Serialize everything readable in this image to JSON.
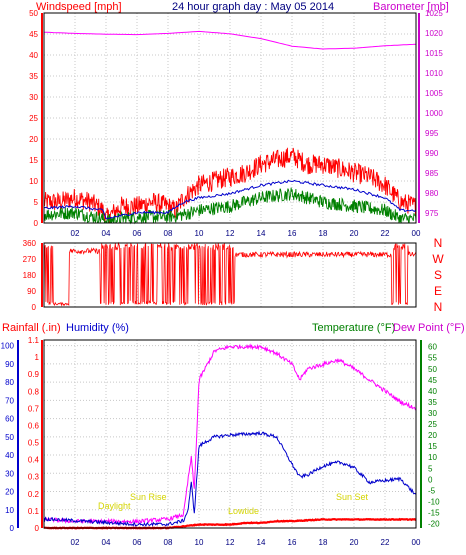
{
  "header": {
    "title": "24 hour graph day : May 05 2014",
    "left_label": "Windspeed [mph]",
    "right_label": "Barometer [mb]"
  },
  "bottom_header": {
    "rainfall_label": "Rainfall (.in)",
    "humidity_label": "Humidity (%)",
    "temperature_label": "Temperature (°F)",
    "dewpoint_label": "Dew Point (°F)"
  },
  "annotations": {
    "daylight": "Daylight",
    "sunrise": "Sun Rise",
    "lowtide": "Lowtide",
    "sunset": "Sun Set"
  },
  "colors": {
    "windspeed": "#ff0000",
    "avg_wind": "#0000cc",
    "gust_low": "#008000",
    "barometer": "#ff00ff",
    "direction": "#ff0000",
    "rainfall": "#ff0000",
    "humidity": "#0000cc",
    "temperature": "#ff00ff",
    "grid": "#c8c8c8",
    "annotation": "#ffff00"
  },
  "chart_data": [
    {
      "type": "line",
      "name": "wind-barometer",
      "xlabel": "",
      "x_ticks": [
        "02",
        "04",
        "06",
        "08",
        "10",
        "12",
        "14",
        "16",
        "18",
        "20",
        "22",
        "00"
      ],
      "y_left_ticks": [
        0,
        5,
        10,
        15,
        20,
        25,
        30,
        35,
        40,
        45,
        50
      ],
      "y_left_label": "Windspeed [mph]",
      "ylim_left": [
        0,
        50
      ],
      "y_right_ticks": [
        975,
        980,
        985,
        990,
        995,
        1000,
        1005,
        1010,
        1015,
        1020,
        1025
      ],
      "y_right_label": "Barometer [mb]",
      "ylim_right": [
        972.5,
        1025
      ],
      "xlim": [
        0,
        24
      ],
      "grid": true,
      "series": [
        {
          "name": "Windspeed",
          "x": [
            0,
            1,
            2,
            3,
            3.8,
            4,
            5,
            6,
            7,
            8,
            8.5,
            9,
            10,
            11,
            12,
            13,
            14,
            15,
            16,
            17,
            18,
            19,
            20,
            21,
            22,
            23,
            24
          ],
          "values": [
            5,
            5,
            6,
            5,
            3,
            1,
            4,
            4,
            5,
            4,
            3,
            6,
            9,
            10,
            11,
            12,
            14,
            15,
            16,
            14,
            14,
            13,
            12,
            11,
            9,
            5,
            4
          ]
        },
        {
          "name": "Avg",
          "x": [
            0,
            2,
            3.8,
            4,
            6,
            8,
            9,
            10,
            12,
            14,
            16,
            18,
            20,
            22,
            23,
            24
          ],
          "values": [
            3.5,
            4,
            3,
            1,
            2.5,
            2.5,
            5,
            6,
            7,
            9,
            10,
            9,
            8,
            6,
            3,
            3
          ]
        },
        {
          "name": "Low",
          "x": [
            0,
            2,
            3.8,
            4,
            6,
            8,
            9,
            10,
            12,
            14,
            16,
            18,
            20,
            22,
            23,
            24
          ],
          "values": [
            2,
            2.5,
            1,
            0.5,
            1.5,
            1.5,
            2,
            3,
            4,
            6,
            7,
            5,
            4,
            3,
            1,
            1
          ]
        },
        {
          "name": "Barometer",
          "x": [
            0,
            2,
            4,
            6,
            8,
            10,
            12,
            14,
            16,
            18,
            20,
            22,
            24
          ],
          "values": [
            1020.2,
            1019.9,
            1019.7,
            1019.6,
            1019.9,
            1020.4,
            1019.8,
            1018.6,
            1016.7,
            1016.0,
            1016.2,
            1016.8,
            1017.2
          ]
        }
      ]
    },
    {
      "type": "line",
      "name": "wind-direction",
      "x_ticks": [],
      "y_ticks": [
        0,
        45,
        90,
        135,
        180,
        225,
        270,
        315,
        360
      ],
      "y_ticks_right": [
        "N",
        "W",
        "S",
        "E",
        "N"
      ],
      "ylim": [
        0,
        360
      ],
      "xlim": [
        0,
        24
      ],
      "series": [
        {
          "name": "Direction",
          "x": [
            0,
            0.3,
            0.6,
            1,
            2,
            3,
            3.5,
            4,
            5,
            6,
            7,
            8,
            9,
            10,
            11,
            12,
            13,
            14,
            16,
            18,
            20,
            22,
            23,
            24
          ],
          "values": [
            5,
            350,
            10,
            300,
            300,
            300,
            350,
            10,
            350,
            5,
            340,
            300,
            20,
            290,
            310,
            300,
            305,
            300,
            295,
            300,
            310,
            330,
            200,
            340
          ]
        }
      ]
    },
    {
      "type": "line",
      "name": "rain-humidity-temperature",
      "x_ticks": [
        "02",
        "04",
        "06",
        "08",
        "10",
        "12",
        "14",
        "16",
        "18",
        "20",
        "22",
        "00"
      ],
      "y_left_ticks": [
        0,
        10,
        20,
        30,
        40,
        50,
        60,
        70,
        80,
        90,
        100
      ],
      "y_left_label": "Humidity (%)",
      "y_rain_ticks": [
        0,
        0.1,
        0.2,
        0.3,
        0.4,
        0.5,
        0.6,
        0.7,
        0.8,
        0.9,
        1,
        1.1
      ],
      "y_rain_label": "Rainfall (.in)",
      "y_right_ticks": [
        -20,
        -15,
        -10,
        -5,
        0,
        5,
        10,
        15,
        20,
        25,
        30,
        35,
        40,
        45,
        50,
        55,
        60
      ],
      "y_right_label": "Temperature (°F)",
      "xlim": [
        0,
        24
      ],
      "grid": true,
      "series": [
        {
          "name": "Rainfall",
          "x": [
            0,
            8,
            9,
            10,
            11,
            12,
            13,
            14,
            15,
            16,
            18,
            20,
            22,
            24
          ],
          "values": [
            0,
            0,
            0.01,
            0.02,
            0.02,
            0.02,
            0.03,
            0.03,
            0.04,
            0.04,
            0.05,
            0.05,
            0.05,
            0.05
          ]
        },
        {
          "name": "Humidity",
          "x": [
            0,
            2,
            4,
            6,
            8,
            9,
            9.3,
            9.5,
            9.7,
            10,
            11,
            12,
            14,
            15,
            16,
            16.5,
            17,
            18,
            19,
            19.5,
            20,
            21,
            22,
            23,
            24
          ],
          "values": [
            5,
            4,
            3,
            2,
            2,
            4,
            10,
            25,
            8,
            45,
            50,
            51,
            52,
            50,
            35,
            28,
            29,
            34,
            36,
            35,
            33,
            25,
            26,
            27,
            18
          ]
        },
        {
          "name": "Temperature",
          "x": [
            0,
            2,
            4,
            6,
            8,
            9,
            9.3,
            9.5,
            9.7,
            10,
            11,
            12,
            14,
            15,
            16,
            16.5,
            17,
            18,
            19,
            20,
            21,
            22,
            23,
            24
          ],
          "values": [
            -18,
            -19,
            -19,
            -19,
            -18,
            -16,
            0,
            10,
            -5,
            45,
            58,
            60,
            60,
            57,
            52,
            45,
            50,
            52,
            54,
            50,
            45,
            40,
            35,
            32
          ]
        }
      ]
    }
  ]
}
